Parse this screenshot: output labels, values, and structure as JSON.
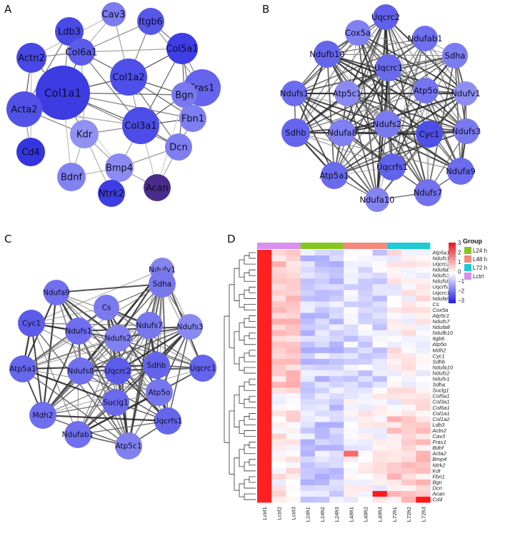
{
  "panels": {
    "A": {
      "label": "A",
      "nodes": [
        {
          "id": "Ldb3",
          "color": "#4a4ae6"
        },
        {
          "id": "Cav3",
          "color": "#7c7cf0"
        },
        {
          "id": "Itgb6",
          "color": "#5757e8"
        },
        {
          "id": "Actn2",
          "color": "#4848e6"
        },
        {
          "id": "Col6a1",
          "color": "#5c5cea"
        },
        {
          "id": "Col5a1",
          "color": "#3e3ee4"
        },
        {
          "id": "Col1a2",
          "color": "#4e4ee8"
        },
        {
          "id": "Col1a1",
          "color": "#3c3ce2"
        },
        {
          "id": "Fras1",
          "color": "#6464ec"
        },
        {
          "id": "Bgn",
          "color": "#7878ee"
        },
        {
          "id": "Acta2",
          "color": "#5252e8"
        },
        {
          "id": "Col3a1",
          "color": "#4c4ce8"
        },
        {
          "id": "Fbn1",
          "color": "#7e7ef0"
        },
        {
          "id": "Kdr",
          "color": "#9191f2"
        },
        {
          "id": "Dcn",
          "color": "#7e7ef0"
        },
        {
          "id": "Cd4",
          "color": "#3535e0"
        },
        {
          "id": "Bmp4",
          "color": "#8b8bf1"
        },
        {
          "id": "Bdnf",
          "color": "#8282f0"
        },
        {
          "id": "Ntrk2",
          "color": "#3d3de4"
        },
        {
          "id": "Acan",
          "color": "#4a2d8a"
        }
      ]
    },
    "B": {
      "label": "B",
      "nodes": [
        {
          "id": "Uqcrc2",
          "color": "#6060ea"
        },
        {
          "id": "Cox5a",
          "color": "#8080f0"
        },
        {
          "id": "Ndufab1",
          "color": "#7070ee"
        },
        {
          "id": "Ndufb10",
          "color": "#6565ec"
        },
        {
          "id": "Sdha",
          "color": "#7c7cf0"
        },
        {
          "id": "Uqcrc1",
          "color": "#6a6aec"
        },
        {
          "id": "Ndufs1",
          "color": "#6c6cee"
        },
        {
          "id": "Atp5c1",
          "color": "#8a8af2"
        },
        {
          "id": "Atp5o",
          "color": "#7474ee"
        },
        {
          "id": "Ndufv1",
          "color": "#8e8ef2"
        },
        {
          "id": "Ndufs2",
          "color": "#7a7aef"
        },
        {
          "id": "Sdhb",
          "color": "#6464ec"
        },
        {
          "id": "Ndufa8",
          "color": "#8080f0"
        },
        {
          "id": "Cyc1",
          "color": "#4e4ee8"
        },
        {
          "id": "Ndufs3",
          "color": "#7a7aef"
        },
        {
          "id": "Uqcrfs1",
          "color": "#6262ea"
        },
        {
          "id": "Ndufa9",
          "color": "#6c6cee"
        },
        {
          "id": "Atp5a1",
          "color": "#6a6aec"
        },
        {
          "id": "Ndufs7",
          "color": "#7272ee"
        },
        {
          "id": "Ndufa10",
          "color": "#8484f0"
        }
      ]
    },
    "C": {
      "label": "C",
      "nodes": [
        {
          "id": "Ndufv1",
          "color": "#8585f0"
        },
        {
          "id": "Ndufa9",
          "color": "#7070ee"
        },
        {
          "id": "Sdha",
          "color": "#7777ee"
        },
        {
          "id": "Cs",
          "color": "#7a7aef"
        },
        {
          "id": "Cyc1",
          "color": "#5c5cea"
        },
        {
          "id": "Ndufs1",
          "color": "#6e6eee"
        },
        {
          "id": "Ndufs7",
          "color": "#7777ee"
        },
        {
          "id": "Ndufs3",
          "color": "#8989f1"
        },
        {
          "id": "Ndufs2",
          "color": "#8080f0"
        },
        {
          "id": "Atp5a1",
          "color": "#6767ec"
        },
        {
          "id": "Ndufs8",
          "color": "#7070ee"
        },
        {
          "id": "Uqcrc2",
          "color": "#5c5cea"
        },
        {
          "id": "Sdhb",
          "color": "#6363ec"
        },
        {
          "id": "Uqcrc1",
          "color": "#6464ec"
        },
        {
          "id": "Atp5o",
          "color": "#7676ee"
        },
        {
          "id": "Mdh2",
          "color": "#6f6fee"
        },
        {
          "id": "Suclg1",
          "color": "#6a6aec"
        },
        {
          "id": "Uqcrfs1",
          "color": "#6565ec"
        },
        {
          "id": "Ndufab1",
          "color": "#7070ee"
        },
        {
          "id": "Atp5c1",
          "color": "#8080f0"
        }
      ]
    },
    "D": {
      "label": "D",
      "legend_title": "Group",
      "groups": [
        {
          "name": "L24 h",
          "color": "#86c61f"
        },
        {
          "name": "L48 h",
          "color": "#f4897c"
        },
        {
          "name": "L72 h",
          "color": "#1ecbd4"
        },
        {
          "name": "Lctrl",
          "color": "#d98ef0"
        }
      ],
      "scale_ticks": [
        "3",
        "2",
        "1",
        "0",
        "−1",
        "−2",
        "−3"
      ],
      "samples": [
        "Lctrl1",
        "Lctrl2",
        "Lctrl3",
        "L24h1",
        "L24h2",
        "L24h3",
        "L48h1",
        "L48h2",
        "L48h3",
        "L72h1",
        "L72h2",
        "L72h3"
      ],
      "genes": [
        "Atp5a1",
        "Ndufs1",
        "Uqcrc2",
        "Ndufab1",
        "Ndufs3",
        "Ndufs8",
        "Uqcrfs1",
        "Uqcrc1",
        "Ndufa9",
        "Cs",
        "Cox5a",
        "Atp5c1",
        "Ndufs7",
        "Ndufa8",
        "Ndufb10",
        "Itgb6",
        "Atp5o",
        "Mdh2",
        "Cyc1",
        "Sdhb",
        "Ndufa10",
        "Ndufs2",
        "Ndufv1",
        "Sdha",
        "Suclg1",
        "Col5a1",
        "Col3a1",
        "Col6a1",
        "Col1a1",
        "Col1a2",
        "Ldb3",
        "Actn2",
        "Cav3",
        "Fras1",
        "Bdnf",
        "Acta2",
        "Bmp4",
        "Ntrk2",
        "Kdr",
        "Fbn1",
        "Bgn",
        "Dcn",
        "Acan",
        "Cd4"
      ]
    }
  }
}
